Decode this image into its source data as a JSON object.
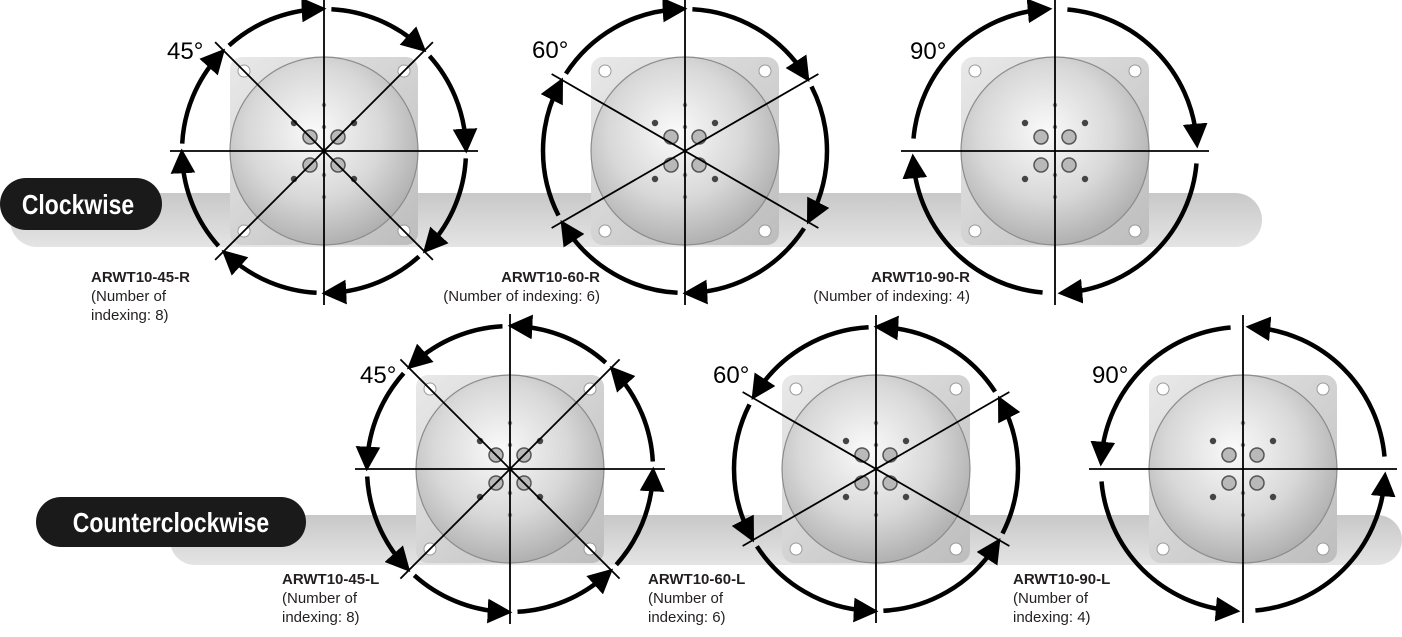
{
  "colors": {
    "ink": "#000000",
    "band": "#d4d4d4",
    "label_bg": "#1a1a1a",
    "label_text": "#ffffff",
    "plate": "#d9d9d9"
  },
  "rows": [
    {
      "direction_label": "Clockwise",
      "direction": "cw",
      "tables": [
        {
          "angle_label": "45°",
          "angle": 45,
          "model": "ARWT10-45-R",
          "indexing_lines": [
            "(Number of",
            "indexing: 8)"
          ]
        },
        {
          "angle_label": "60°",
          "angle": 60,
          "model": "ARWT10-60-R",
          "indexing_lines": [
            "(Number of indexing: 6)"
          ]
        },
        {
          "angle_label": "90°",
          "angle": 90,
          "model": "ARWT10-90-R",
          "indexing_lines": [
            "(Number of indexing: 4)"
          ]
        }
      ]
    },
    {
      "direction_label": "Counterclockwise",
      "direction": "ccw",
      "tables": [
        {
          "angle_label": "45°",
          "angle": 45,
          "model": "ARWT10-45-L",
          "indexing_lines": [
            "(Number of",
            "indexing: 8)"
          ]
        },
        {
          "angle_label": "60°",
          "angle": 60,
          "model": "ARWT10-60-L",
          "indexing_lines": [
            "(Number of",
            "indexing: 6)"
          ]
        },
        {
          "angle_label": "90°",
          "angle": 90,
          "model": "ARWT10-90-L",
          "indexing_lines": [
            "(Number of",
            "indexing: 4)"
          ]
        }
      ]
    }
  ]
}
